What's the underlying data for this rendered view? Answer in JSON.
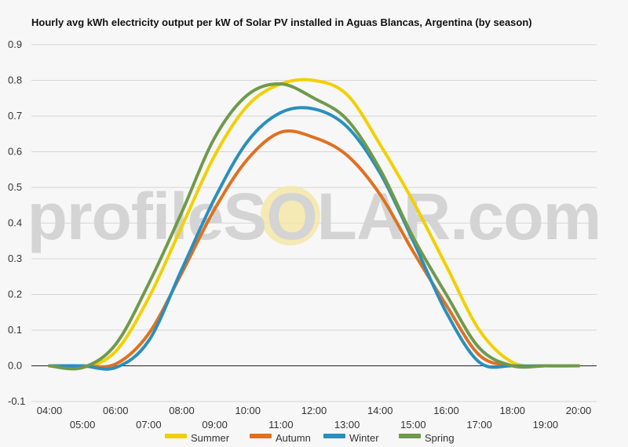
{
  "chart_data": {
    "type": "line",
    "title": "Hourly avg kWh electricity output per kW of Solar PV installed in Aguas Blancas, Argentina (by season)",
    "xlabel": "",
    "ylabel": "",
    "x": [
      "04:00",
      "05:00",
      "06:00",
      "07:00",
      "08:00",
      "09:00",
      "10:00",
      "11:00",
      "12:00",
      "13:00",
      "14:00",
      "15:00",
      "16:00",
      "17:00",
      "18:00",
      "19:00",
      "20:00"
    ],
    "ylim": [
      -0.1,
      0.9
    ],
    "yticks": [
      "-0.1",
      "0.0",
      "0.1",
      "0.2",
      "0.3",
      "0.4",
      "0.5",
      "0.6",
      "0.7",
      "0.8",
      "0.9"
    ],
    "grid": true,
    "legend_position": "bottom",
    "series": [
      {
        "name": "Summer",
        "color": "#f2d000",
        "values": [
          0.0,
          -0.005,
          0.04,
          0.19,
          0.39,
          0.59,
          0.73,
          0.79,
          0.8,
          0.76,
          0.62,
          0.46,
          0.28,
          0.1,
          0.01,
          0.0,
          0.0
        ]
      },
      {
        "name": "Autumn",
        "color": "#e07020",
        "values": [
          0.0,
          0.0,
          0.005,
          0.09,
          0.26,
          0.44,
          0.58,
          0.655,
          0.64,
          0.59,
          0.48,
          0.32,
          0.17,
          0.03,
          0.0,
          0.0,
          0.0
        ]
      },
      {
        "name": "Winter",
        "color": "#2a8fbd",
        "values": [
          0.0,
          0.0,
          -0.005,
          0.07,
          0.27,
          0.47,
          0.63,
          0.71,
          0.72,
          0.67,
          0.54,
          0.35,
          0.15,
          0.01,
          0.0,
          0.0,
          0.0
        ]
      },
      {
        "name": "Spring",
        "color": "#6f9a4b",
        "values": [
          0.0,
          -0.005,
          0.06,
          0.23,
          0.43,
          0.64,
          0.76,
          0.79,
          0.75,
          0.69,
          0.55,
          0.36,
          0.2,
          0.05,
          0.0,
          0.0,
          0.0
        ]
      }
    ]
  },
  "watermark": {
    "text": "profileSOLAR.com"
  }
}
